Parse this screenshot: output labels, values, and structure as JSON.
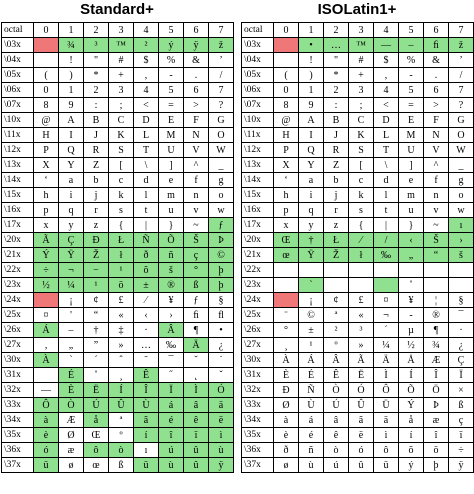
{
  "colors": {
    "green": "#8fe08f",
    "red": "#f07777"
  },
  "left": {
    "title": "Standard+",
    "corner": "octal",
    "columns": [
      "0",
      "1",
      "2",
      "3",
      "4",
      "5",
      "6",
      "7"
    ],
    "rows": [
      {
        "label": "\\03x",
        "cells": [
          "",
          "¾",
          "³",
          "™",
          "²",
          "ý",
          "ÿ",
          "ž"
        ],
        "marks": [
          "r",
          "g",
          "g",
          "g",
          "g",
          "g",
          "g",
          "g"
        ]
      },
      {
        "label": "\\04x",
        "cells": [
          "",
          "!",
          "\"",
          "#",
          "$",
          "%",
          "&",
          "’"
        ],
        "marks": [
          "",
          "",
          "",
          "",
          "",
          "",
          "",
          ""
        ]
      },
      {
        "label": "\\05x",
        "cells": [
          "(",
          ")",
          "*",
          "+",
          ",",
          "-",
          ".",
          "/"
        ],
        "marks": [
          "",
          "",
          "",
          "",
          "",
          "",
          "",
          ""
        ]
      },
      {
        "label": "\\06x",
        "cells": [
          "0",
          "1",
          "2",
          "3",
          "4",
          "5",
          "6",
          "7"
        ],
        "marks": [
          "",
          "",
          "",
          "",
          "",
          "",
          "",
          ""
        ]
      },
      {
        "label": "\\07x",
        "cells": [
          "8",
          "9",
          ":",
          ";",
          "<",
          "=",
          ">",
          "?"
        ],
        "marks": [
          "",
          "",
          "",
          "",
          "",
          "",
          "",
          ""
        ]
      },
      {
        "label": "\\10x",
        "cells": [
          "@",
          "A",
          "B",
          "C",
          "D",
          "E",
          "F",
          "G"
        ],
        "marks": [
          "",
          "",
          "",
          "",
          "",
          "",
          "",
          ""
        ]
      },
      {
        "label": "\\11x",
        "cells": [
          "H",
          "I",
          "J",
          "K",
          "L",
          "M",
          "N",
          "O"
        ],
        "marks": [
          "",
          "",
          "",
          "",
          "",
          "",
          "",
          ""
        ]
      },
      {
        "label": "\\12x",
        "cells": [
          "P",
          "Q",
          "R",
          "S",
          "T",
          "U",
          "V",
          "W"
        ],
        "marks": [
          "",
          "",
          "",
          "",
          "",
          "",
          "",
          ""
        ]
      },
      {
        "label": "\\13x",
        "cells": [
          "X",
          "Y",
          "Z",
          "[",
          "\\",
          "]",
          "^",
          "_"
        ],
        "marks": [
          "",
          "",
          "",
          "",
          "",
          "",
          "",
          ""
        ]
      },
      {
        "label": "\\14x",
        "cells": [
          "‘",
          "a",
          "b",
          "c",
          "d",
          "e",
          "f",
          "g"
        ],
        "marks": [
          "",
          "",
          "",
          "",
          "",
          "",
          "",
          ""
        ]
      },
      {
        "label": "\\15x",
        "cells": [
          "h",
          "i",
          "j",
          "k",
          "l",
          "m",
          "n",
          "o"
        ],
        "marks": [
          "",
          "",
          "",
          "",
          "",
          "",
          "",
          ""
        ]
      },
      {
        "label": "\\16x",
        "cells": [
          "p",
          "q",
          "r",
          "s",
          "t",
          "u",
          "v",
          "w"
        ],
        "marks": [
          "",
          "",
          "",
          "",
          "",
          "",
          "",
          ""
        ]
      },
      {
        "label": "\\17x",
        "cells": [
          "x",
          "y",
          "z",
          "{",
          "|",
          "}",
          "~",
          "ƒ"
        ],
        "marks": [
          "",
          "",
          "",
          "",
          "",
          "",
          "",
          "g"
        ]
      },
      {
        "label": "\\20x",
        "cells": [
          "Ã",
          "Ç",
          "Ð",
          "Ł",
          "Ñ",
          "Õ",
          "Š",
          "Þ"
        ],
        "marks": [
          "g",
          "g",
          "g",
          "g",
          "g",
          "g",
          "g",
          "g"
        ]
      },
      {
        "label": "\\21x",
        "cells": [
          "Ý",
          "Ÿ",
          "Ž",
          "ł",
          "ð",
          "ñ",
          "ç",
          "©"
        ],
        "marks": [
          "g",
          "g",
          "g",
          "g",
          "g",
          "g",
          "g",
          "g"
        ]
      },
      {
        "label": "\\22x",
        "cells": [
          "÷",
          "¬",
          "−",
          "¹",
          "õ",
          "š",
          "°",
          "þ"
        ],
        "marks": [
          "g",
          "g",
          "g",
          "g",
          "g",
          "g",
          "g",
          "g"
        ]
      },
      {
        "label": "\\23x",
        "cells": [
          "½",
          "¼",
          "¹",
          "ö",
          "±",
          "®",
          "ß",
          "þ"
        ],
        "marks": [
          "g",
          "g",
          "g",
          "g",
          "g",
          "g",
          "g",
          "g"
        ]
      },
      {
        "label": "\\24x",
        "cells": [
          "",
          "¡",
          "¢",
          "£",
          "⁄",
          "¥",
          "ƒ",
          "§"
        ],
        "marks": [
          "r",
          "",
          "",
          "",
          "",
          "",
          "",
          ""
        ]
      },
      {
        "label": "\\25x",
        "cells": [
          "¤",
          "'",
          "“",
          "«",
          "‹",
          "›",
          "ﬁ",
          "ﬂ"
        ],
        "marks": [
          "",
          "",
          "",
          "",
          "",
          "",
          "",
          ""
        ]
      },
      {
        "label": "\\26x",
        "cells": [
          "Á",
          "–",
          "†",
          "‡",
          "·",
          "Â",
          "¶",
          "•"
        ],
        "marks": [
          "g",
          "",
          "",
          "",
          "",
          "g",
          "",
          ""
        ]
      },
      {
        "label": "\\27x",
        "cells": [
          "‚",
          "„",
          "”",
          "»",
          "…",
          "‰",
          "Ä",
          "¿"
        ],
        "marks": [
          "",
          "",
          "",
          "",
          "",
          "",
          "g",
          ""
        ]
      },
      {
        "label": "\\30x",
        "cells": [
          "À",
          "`",
          "´",
          "ˆ",
          "˜",
          "¯",
          "˘",
          "˙"
        ],
        "marks": [
          "g",
          "",
          "",
          "",
          "",
          "",
          "",
          ""
        ]
      },
      {
        "label": "\\31x",
        "cells": [
          "",
          "É",
          "˚",
          "¸",
          "Ê",
          "˝",
          "˛",
          "ˇ"
        ],
        "marks": [
          "",
          "g",
          "",
          "",
          "g",
          "",
          "",
          ""
        ]
      },
      {
        "label": "\\32x",
        "cells": [
          "—",
          "È",
          "Ë",
          "Í",
          "Î",
          "Ï",
          "Ì",
          "Ó"
        ],
        "marks": [
          "",
          "g",
          "g",
          "g",
          "g",
          "g",
          "g",
          "g"
        ]
      },
      {
        "label": "\\33x",
        "cells": [
          "Ô",
          "Ò",
          "Ú",
          "Û",
          "Ù",
          "á",
          "â",
          "ä"
        ],
        "marks": [
          "g",
          "g",
          "g",
          "g",
          "g",
          "g",
          "g",
          "g"
        ]
      },
      {
        "label": "\\34x",
        "cells": [
          "à",
          "Æ",
          "å",
          "ª",
          "ã",
          "é",
          "ê",
          "ë"
        ],
        "marks": [
          "g",
          "",
          "g",
          "",
          "g",
          "g",
          "g",
          "g"
        ]
      },
      {
        "label": "\\35x",
        "cells": [
          "è",
          "Ø",
          "Œ",
          "º",
          "í",
          "î",
          "ï",
          "ì"
        ],
        "marks": [
          "g",
          "",
          "",
          "",
          "g",
          "g",
          "g",
          "g"
        ]
      },
      {
        "label": "\\36x",
        "cells": [
          "ó",
          "æ",
          "ô",
          "ò",
          "ı",
          "ú",
          "û",
          "ù"
        ],
        "marks": [
          "g",
          "",
          "g",
          "g",
          "",
          "g",
          "g",
          "g"
        ]
      },
      {
        "label": "\\37x",
        "cells": [
          "ü",
          "ø",
          "œ",
          "ß",
          "ü",
          "ù",
          "û",
          "ÿ"
        ],
        "marks": [
          "g",
          "",
          "",
          "",
          "g",
          "g",
          "g",
          "g"
        ]
      }
    ]
  },
  "right": {
    "title": "ISOLatin1+",
    "corner": "octal",
    "columns": [
      "0",
      "1",
      "2",
      "3",
      "4",
      "5",
      "6",
      "7"
    ],
    "rows": [
      {
        "label": "\\03x",
        "cells": [
          "",
          "•",
          "…",
          "™",
          "—",
          "–",
          "ﬁ",
          "ž"
        ],
        "marks": [
          "r",
          "g",
          "g",
          "g",
          "g",
          "g",
          "g",
          "g"
        ]
      },
      {
        "label": "\\04x",
        "cells": [
          "",
          "!",
          "\"",
          "#",
          "$",
          "%",
          "&",
          "’"
        ],
        "marks": [
          "",
          "",
          "",
          "",
          "",
          "",
          "",
          ""
        ]
      },
      {
        "label": "\\05x",
        "cells": [
          "(",
          ")",
          "*",
          "+",
          ",",
          "-",
          ".",
          "/"
        ],
        "marks": [
          "",
          "",
          "",
          "",
          "",
          "",
          "",
          ""
        ]
      },
      {
        "label": "\\06x",
        "cells": [
          "0",
          "1",
          "2",
          "3",
          "4",
          "5",
          "6",
          "7"
        ],
        "marks": [
          "",
          "",
          "",
          "",
          "",
          "",
          "",
          ""
        ]
      },
      {
        "label": "\\07x",
        "cells": [
          "8",
          "9",
          ":",
          ";",
          "<",
          "=",
          ">",
          "?"
        ],
        "marks": [
          "",
          "",
          "",
          "",
          "",
          "",
          "",
          ""
        ]
      },
      {
        "label": "\\10x",
        "cells": [
          "@",
          "A",
          "B",
          "C",
          "D",
          "E",
          "F",
          "G"
        ],
        "marks": [
          "",
          "",
          "",
          "",
          "",
          "",
          "",
          ""
        ]
      },
      {
        "label": "\\11x",
        "cells": [
          "H",
          "I",
          "J",
          "K",
          "L",
          "M",
          "N",
          "O"
        ],
        "marks": [
          "",
          "",
          "",
          "",
          "",
          "",
          "",
          ""
        ]
      },
      {
        "label": "\\12x",
        "cells": [
          "P",
          "Q",
          "R",
          "S",
          "T",
          "U",
          "V",
          "W"
        ],
        "marks": [
          "",
          "",
          "",
          "",
          "",
          "",
          "",
          ""
        ]
      },
      {
        "label": "\\13x",
        "cells": [
          "X",
          "Y",
          "Z",
          "[",
          "\\",
          "]",
          "^",
          "_"
        ],
        "marks": [
          "",
          "",
          "",
          "",
          "",
          "",
          "",
          ""
        ]
      },
      {
        "label": "\\14x",
        "cells": [
          "‘",
          "a",
          "b",
          "c",
          "d",
          "e",
          "f",
          "g"
        ],
        "marks": [
          "",
          "",
          "",
          "",
          "",
          "",
          "",
          ""
        ]
      },
      {
        "label": "\\15x",
        "cells": [
          "h",
          "i",
          "j",
          "k",
          "l",
          "m",
          "n",
          "o"
        ],
        "marks": [
          "",
          "",
          "",
          "",
          "",
          "",
          "",
          ""
        ]
      },
      {
        "label": "\\16x",
        "cells": [
          "p",
          "q",
          "r",
          "s",
          "t",
          "u",
          "v",
          "w"
        ],
        "marks": [
          "",
          "",
          "",
          "",
          "",
          "",
          "",
          ""
        ]
      },
      {
        "label": "\\17x",
        "cells": [
          "x",
          "y",
          "z",
          "{",
          "|",
          "}",
          "~",
          "ı"
        ],
        "marks": [
          "",
          "",
          "",
          "",
          "",
          "",
          "",
          "g"
        ]
      },
      {
        "label": "\\20x",
        "cells": [
          "Œ",
          "†",
          "Ł",
          "⁄",
          "/",
          "‹",
          "Š",
          "›"
        ],
        "marks": [
          "g",
          "g",
          "g",
          "g",
          "g",
          "g",
          "g",
          "g"
        ]
      },
      {
        "label": "\\21x",
        "cells": [
          "œ",
          "Ÿ",
          "Ž",
          "ł",
          "‰",
          "„",
          "“",
          "š"
        ],
        "marks": [
          "g",
          "g",
          "g",
          "g",
          "g",
          "g",
          "g",
          "g"
        ]
      },
      {
        "label": "\\22x",
        "cells": [
          "",
          "",
          "",
          "",
          "",
          "",
          "",
          ""
        ],
        "marks": [
          "",
          "",
          "",
          "",
          "",
          "",
          "",
          ""
        ]
      },
      {
        "label": "\\23x",
        "cells": [
          "",
          "`",
          "",
          "",
          "",
          "˚",
          "",
          ""
        ],
        "marks": [
          "",
          "g",
          "",
          "",
          "g",
          "",
          "",
          ""
        ]
      },
      {
        "label": "\\24x",
        "cells": [
          "",
          "¡",
          "¢",
          "£",
          "¤",
          "¥",
          "¦",
          "§"
        ],
        "marks": [
          "r",
          "",
          "",
          "",
          "",
          "",
          "",
          ""
        ]
      },
      {
        "label": "\\25x",
        "cells": [
          "¨",
          "©",
          "ª",
          "«",
          "¬",
          "-",
          "®",
          "¯"
        ],
        "marks": [
          "",
          "",
          "",
          "",
          "",
          "",
          "",
          ""
        ]
      },
      {
        "label": "\\26x",
        "cells": [
          "°",
          "±",
          "²",
          "³",
          "´",
          "µ",
          "¶",
          "·"
        ],
        "marks": [
          "",
          "",
          "",
          "",
          "",
          "",
          "",
          ""
        ]
      },
      {
        "label": "\\27x",
        "cells": [
          "¸",
          "¹",
          "º",
          "»",
          "¼",
          "½",
          "¾",
          "¿"
        ],
        "marks": [
          "",
          "",
          "",
          "",
          "",
          "",
          "",
          ""
        ]
      },
      {
        "label": "\\30x",
        "cells": [
          "À",
          "Á",
          "Â",
          "Ã",
          "Ä",
          "Å",
          "Æ",
          "Ç"
        ],
        "marks": [
          "",
          "",
          "",
          "",
          "",
          "",
          "",
          ""
        ]
      },
      {
        "label": "\\31x",
        "cells": [
          "È",
          "É",
          "Ê",
          "Ë",
          "Ì",
          "Í",
          "Î",
          "Ï"
        ],
        "marks": [
          "",
          "",
          "",
          "",
          "",
          "",
          "",
          ""
        ]
      },
      {
        "label": "\\32x",
        "cells": [
          "Ð",
          "Ñ",
          "Ò",
          "Ó",
          "Ô",
          "Õ",
          "Ö",
          "×"
        ],
        "marks": [
          "",
          "",
          "",
          "",
          "",
          "",
          "",
          ""
        ]
      },
      {
        "label": "\\33x",
        "cells": [
          "Ø",
          "Ù",
          "Ú",
          "Û",
          "Ü",
          "Ý",
          "Þ",
          "ß"
        ],
        "marks": [
          "",
          "",
          "",
          "",
          "",
          "",
          "",
          ""
        ]
      },
      {
        "label": "\\34x",
        "cells": [
          "à",
          "á",
          "â",
          "ã",
          "ä",
          "å",
          "æ",
          "ç"
        ],
        "marks": [
          "",
          "",
          "",
          "",
          "",
          "",
          "",
          ""
        ]
      },
      {
        "label": "\\35x",
        "cells": [
          "è",
          "é",
          "ê",
          "ë",
          "ì",
          "í",
          "î",
          "ï"
        ],
        "marks": [
          "",
          "",
          "",
          "",
          "",
          "",
          "",
          ""
        ]
      },
      {
        "label": "\\36x",
        "cells": [
          "ð",
          "ñ",
          "ò",
          "ó",
          "ô",
          "õ",
          "ö",
          "÷"
        ],
        "marks": [
          "",
          "",
          "",
          "",
          "",
          "",
          "",
          ""
        ]
      },
      {
        "label": "\\37x",
        "cells": [
          "ø",
          "ù",
          "ú",
          "û",
          "ü",
          "ý",
          "þ",
          "ÿ"
        ],
        "marks": [
          "",
          "",
          "",
          "",
          "",
          "",
          "",
          ""
        ]
      }
    ]
  }
}
